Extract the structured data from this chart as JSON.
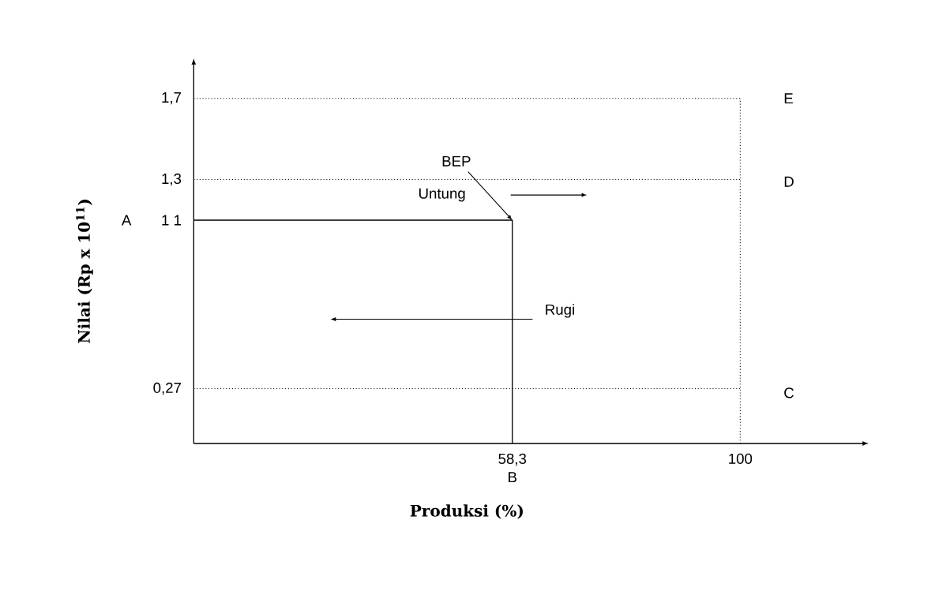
{
  "chart_data": {
    "type": "line",
    "xlabel": "Produksi (%)",
    "ylabel": "Nilai (Rp x 10$^{11}$)",
    "xlim": [
      0,
      100
    ],
    "ylim": [
      0,
      1.7
    ],
    "xticks": [
      {
        "value": 58.3,
        "label": "58,3"
      },
      100
    ],
    "yticks": [
      {
        "value": 0.27,
        "label": "0,27"
      },
      {
        "value": 1.1,
        "label": "1 1"
      },
      {
        "value": 1.3,
        "label": "1,3"
      },
      {
        "value": 1.7,
        "label": "1,7"
      }
    ],
    "series": [
      {
        "color": "#000000",
        "line_style": "solid",
        "x": [
          0,
          58.3,
          58.3
        ],
        "values": [
          1.1,
          1.1,
          0
        ]
      },
      {
        "color": "#000000",
        "line_style": "dotted",
        "x": [
          0,
          100
        ],
        "values": [
          1.7,
          1.7
        ]
      },
      {
        "color": "#000000",
        "line_style": "dotted",
        "x": [
          0,
          100
        ],
        "values": [
          1.3,
          1.3
        ]
      },
      {
        "color": "#000000",
        "line_style": "dotted",
        "x": [
          0,
          100
        ],
        "values": [
          0.27,
          0.27
        ]
      },
      {
        "color": "#000000",
        "line_style": "dotted",
        "x": [
          100,
          100
        ],
        "values": [
          0,
          1.7
        ]
      }
    ],
    "annotations": [
      "A",
      "B",
      "C",
      "D",
      "E",
      {
        "text": "BEP",
        "x": 58.3,
        "y": 1.1
      },
      "Untung",
      "Rugi"
    ],
    "marker": "none",
    "grid": false
  }
}
